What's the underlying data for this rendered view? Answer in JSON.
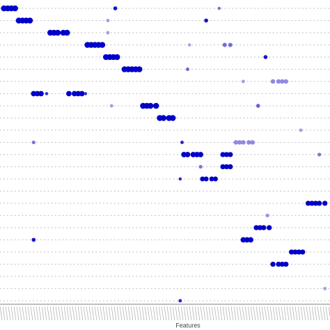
{
  "chart_data": {
    "type": "dotplot",
    "x_label": "Features",
    "xlim": [
      0,
      176
    ],
    "ylim": [
      0,
      24
    ],
    "size_max": 80,
    "expr_lim": [
      0,
      2
    ],
    "color_range": [
      "#cfc4ec",
      "#0000c8"
    ],
    "points": [
      [
        1,
        0,
        80,
        2
      ],
      [
        3,
        0,
        80,
        2
      ],
      [
        5,
        0,
        80,
        2
      ],
      [
        7,
        0,
        80,
        2
      ],
      [
        61,
        0,
        45,
        1.8
      ],
      [
        117,
        0,
        30,
        0.8
      ],
      [
        9,
        1,
        80,
        2
      ],
      [
        11,
        1,
        80,
        2
      ],
      [
        13,
        1,
        80,
        2
      ],
      [
        15,
        1,
        80,
        2
      ],
      [
        110,
        1,
        45,
        1.8
      ],
      [
        57,
        1,
        35,
        0.4
      ],
      [
        26,
        2,
        80,
        2
      ],
      [
        28,
        2,
        80,
        2
      ],
      [
        30,
        2,
        80,
        2
      ],
      [
        33,
        2,
        80,
        2
      ],
      [
        35,
        2,
        80,
        2
      ],
      [
        57,
        2,
        35,
        0.4
      ],
      [
        46,
        3,
        80,
        2
      ],
      [
        48,
        3,
        80,
        2
      ],
      [
        50,
        3,
        80,
        2
      ],
      [
        52,
        3,
        80,
        2
      ],
      [
        54,
        3,
        80,
        2
      ],
      [
        120,
        3,
        50,
        0.9
      ],
      [
        123,
        3,
        50,
        0.9
      ],
      [
        101,
        3,
        30,
        0.4
      ],
      [
        56,
        4,
        80,
        2
      ],
      [
        58,
        4,
        80,
        2
      ],
      [
        60,
        4,
        80,
        2
      ],
      [
        62,
        4,
        80,
        2
      ],
      [
        142,
        4,
        45,
        1.8
      ],
      [
        66,
        5,
        80,
        2
      ],
      [
        68,
        5,
        80,
        2
      ],
      [
        70,
        5,
        80,
        2
      ],
      [
        72,
        5,
        80,
        2
      ],
      [
        74,
        5,
        80,
        2
      ],
      [
        100,
        5,
        35,
        1
      ],
      [
        146,
        6,
        55,
        0.6
      ],
      [
        149,
        6,
        55,
        0.6
      ],
      [
        151,
        6,
        55,
        0.6
      ],
      [
        153,
        6,
        55,
        0.6
      ],
      [
        130,
        6,
        35,
        0.4
      ],
      [
        17,
        7,
        70,
        2
      ],
      [
        19,
        7,
        70,
        2
      ],
      [
        21,
        7,
        70,
        2
      ],
      [
        24,
        7,
        30,
        1.5
      ],
      [
        36,
        7,
        70,
        2
      ],
      [
        39,
        7,
        70,
        2
      ],
      [
        41,
        7,
        70,
        2
      ],
      [
        43,
        7,
        70,
        2
      ],
      [
        45,
        7,
        30,
        1.5
      ],
      [
        76,
        8,
        80,
        2
      ],
      [
        78,
        8,
        80,
        2
      ],
      [
        80,
        8,
        80,
        2
      ],
      [
        83,
        8,
        80,
        2
      ],
      [
        138,
        8,
        45,
        1
      ],
      [
        59,
        8,
        35,
        0.4
      ],
      [
        85,
        9,
        80,
        2
      ],
      [
        87,
        9,
        80,
        2
      ],
      [
        90,
        9,
        80,
        2
      ],
      [
        92,
        9,
        80,
        2
      ],
      [
        161,
        10,
        35,
        0.4
      ],
      [
        126,
        11,
        55,
        0.6
      ],
      [
        128,
        11,
        55,
        0.6
      ],
      [
        130,
        11,
        55,
        0.6
      ],
      [
        133,
        11,
        55,
        0.6
      ],
      [
        135,
        11,
        55,
        0.6
      ],
      [
        97,
        11,
        35,
        1.6
      ],
      [
        17,
        11,
        40,
        0.8
      ],
      [
        98,
        12,
        70,
        2
      ],
      [
        100,
        12,
        70,
        2
      ],
      [
        103,
        12,
        70,
        2
      ],
      [
        105,
        12,
        70,
        2
      ],
      [
        107,
        12,
        70,
        2
      ],
      [
        119,
        12,
        65,
        2
      ],
      [
        121,
        12,
        65,
        2
      ],
      [
        123,
        12,
        65,
        2
      ],
      [
        171,
        12,
        40,
        0.8
      ],
      [
        119,
        13,
        65,
        2
      ],
      [
        121,
        13,
        65,
        2
      ],
      [
        123,
        13,
        65,
        2
      ],
      [
        107,
        13,
        40,
        0.8
      ],
      [
        108,
        14,
        60,
        2
      ],
      [
        110,
        14,
        60,
        2
      ],
      [
        113,
        14,
        60,
        2
      ],
      [
        115,
        14,
        60,
        2
      ],
      [
        96,
        14,
        30,
        1.6
      ],
      [
        165,
        16,
        65,
        2
      ],
      [
        167,
        16,
        65,
        2
      ],
      [
        169,
        16,
        65,
        2
      ],
      [
        171,
        16,
        65,
        2
      ],
      [
        174,
        16,
        65,
        2
      ],
      [
        143,
        17,
        40,
        0.5
      ],
      [
        137,
        18,
        65,
        2
      ],
      [
        139,
        18,
        65,
        2
      ],
      [
        141,
        18,
        65,
        2
      ],
      [
        144,
        18,
        65,
        2
      ],
      [
        17,
        19,
        45,
        1.8
      ],
      [
        130,
        19,
        70,
        2
      ],
      [
        132,
        19,
        70,
        2
      ],
      [
        134,
        19,
        70,
        2
      ],
      [
        156,
        20,
        65,
        2
      ],
      [
        158,
        20,
        65,
        2
      ],
      [
        160,
        20,
        65,
        2
      ],
      [
        162,
        20,
        65,
        2
      ],
      [
        146,
        21,
        65,
        2
      ],
      [
        149,
        21,
        65,
        2
      ],
      [
        151,
        21,
        65,
        2
      ],
      [
        153,
        21,
        65,
        2
      ],
      [
        174,
        23,
        35,
        0.4
      ],
      [
        96,
        24,
        35,
        1.6
      ]
    ]
  }
}
